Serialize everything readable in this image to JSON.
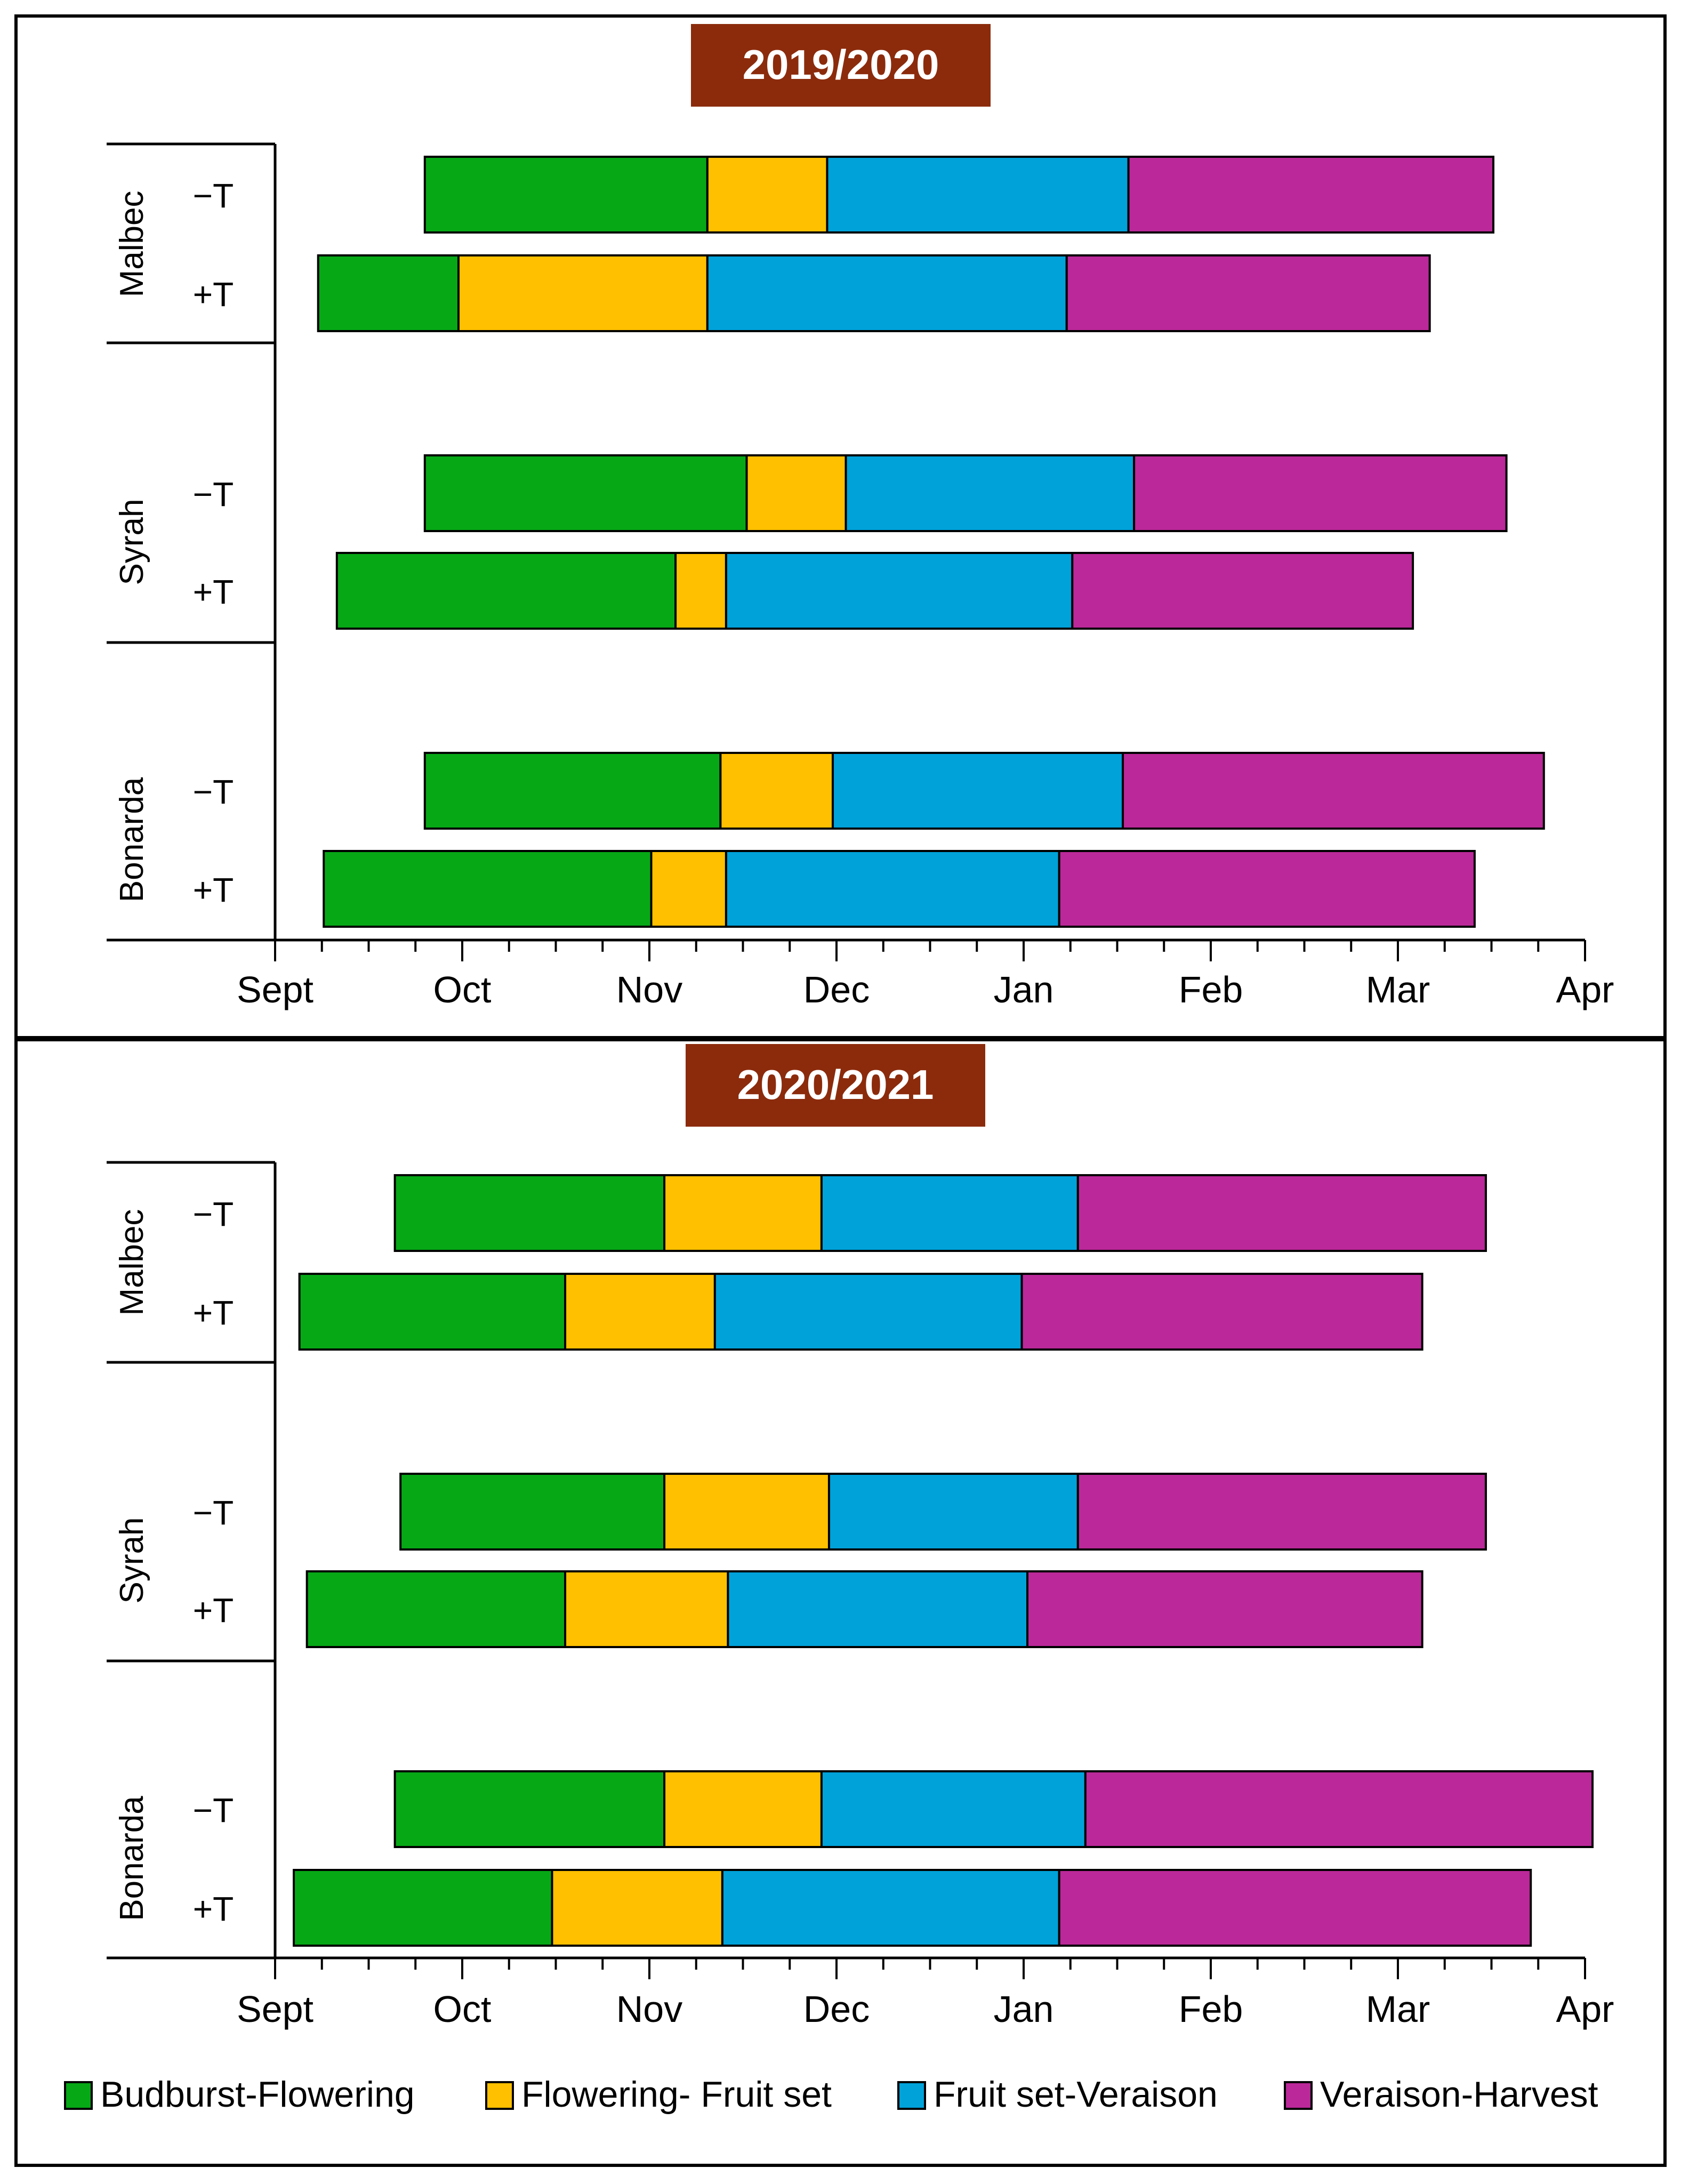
{
  "colors": {
    "Budburst-Flowering": "#06a816",
    "Flowering- Fruit set": "#ffc000",
    "Fruit set-Veraison": "#00a2da",
    "Veraison-Harvest": "#bb2899",
    "title_bg": "#8b2b0c",
    "title_text": "#ffffff"
  },
  "legend": {
    "items": [
      "Budburst-Flowering",
      "Flowering- Fruit set",
      "Fruit set-Veraison",
      "Veraison-Harvest"
    ]
  },
  "chart_data": [
    {
      "type": "bar",
      "orientation": "horizontal-stacked-timeline",
      "title": "2019/2020",
      "x_ticks": [
        "Sept",
        "Oct",
        "Nov",
        "Dec",
        "Jan",
        "Feb",
        "Mar",
        "Apr"
      ],
      "x_unit": "month",
      "xlim": [
        0,
        7
      ],
      "phases": [
        "Budburst-Flowering",
        "Flowering- Fruit set",
        "Fruit set-Veraison",
        "Veraison-Harvest"
      ],
      "groups": [
        {
          "label": "Malbec",
          "rows": [
            {
              "label": "−T",
              "boundaries": [
                0.8,
                2.31,
                2.95,
                4.56,
                6.51
              ]
            },
            {
              "label": "+T",
              "boundaries": [
                0.23,
                0.98,
                2.31,
                4.23,
                6.17
              ]
            }
          ]
        },
        {
          "label": "Syrah",
          "rows": [
            {
              "label": "−T",
              "boundaries": [
                0.8,
                2.52,
                3.05,
                4.59,
                6.58
              ]
            },
            {
              "label": "+T",
              "boundaries": [
                0.33,
                2.14,
                2.41,
                4.26,
                6.08
              ]
            }
          ]
        },
        {
          "label": "Bonarda",
          "rows": [
            {
              "label": "−T",
              "boundaries": [
                0.8,
                2.38,
                2.98,
                4.53,
                6.78
              ]
            },
            {
              "label": "+T",
              "boundaries": [
                0.26,
                2.01,
                2.41,
                4.19,
                6.41
              ]
            }
          ]
        }
      ]
    },
    {
      "type": "bar",
      "orientation": "horizontal-stacked-timeline",
      "title": "2020/2021",
      "x_ticks": [
        "Sept",
        "Oct",
        "Nov",
        "Dec",
        "Jan",
        "Feb",
        "Mar",
        "Apr"
      ],
      "x_unit": "month",
      "xlim": [
        0,
        7
      ],
      "phases": [
        "Budburst-Flowering",
        "Flowering- Fruit set",
        "Fruit set-Veraison",
        "Veraison-Harvest"
      ],
      "groups": [
        {
          "label": "Malbec",
          "rows": [
            {
              "label": "−T",
              "boundaries": [
                0.64,
                2.08,
                2.92,
                4.29,
                6.47
              ]
            },
            {
              "label": "+T",
              "boundaries": [
                0.13,
                1.55,
                2.35,
                3.99,
                6.13
              ]
            }
          ]
        },
        {
          "label": "Syrah",
          "rows": [
            {
              "label": "−T",
              "boundaries": [
                0.67,
                2.08,
                2.96,
                4.29,
                6.47
              ]
            },
            {
              "label": "+T",
              "boundaries": [
                0.17,
                1.55,
                2.42,
                4.02,
                6.13
              ]
            }
          ]
        },
        {
          "label": "Bonarda",
          "rows": [
            {
              "label": "−T",
              "boundaries": [
                0.64,
                2.08,
                2.92,
                4.33,
                7.04
              ]
            },
            {
              "label": "+T",
              "boundaries": [
                0.1,
                1.48,
                2.39,
                4.19,
                6.71
              ]
            }
          ]
        }
      ]
    }
  ]
}
